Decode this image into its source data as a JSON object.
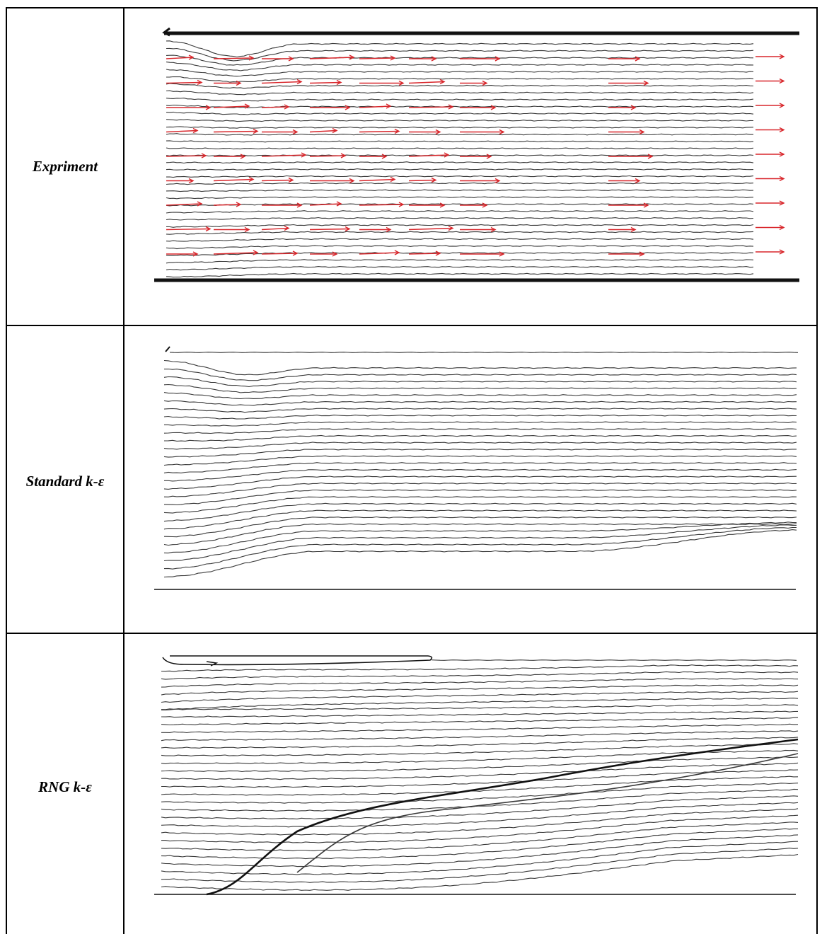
{
  "rows": [
    {
      "label": "Expriment",
      "kind": "experiment"
    },
    {
      "label": "Standard k-ε",
      "kind": "standard"
    },
    {
      "label": "RNG k-ε",
      "kind": "rng"
    }
  ],
  "colors": {
    "streamline": "#3a3a3a",
    "wall": "#111111",
    "vector": "#d8262b",
    "border": "#000000"
  }
}
